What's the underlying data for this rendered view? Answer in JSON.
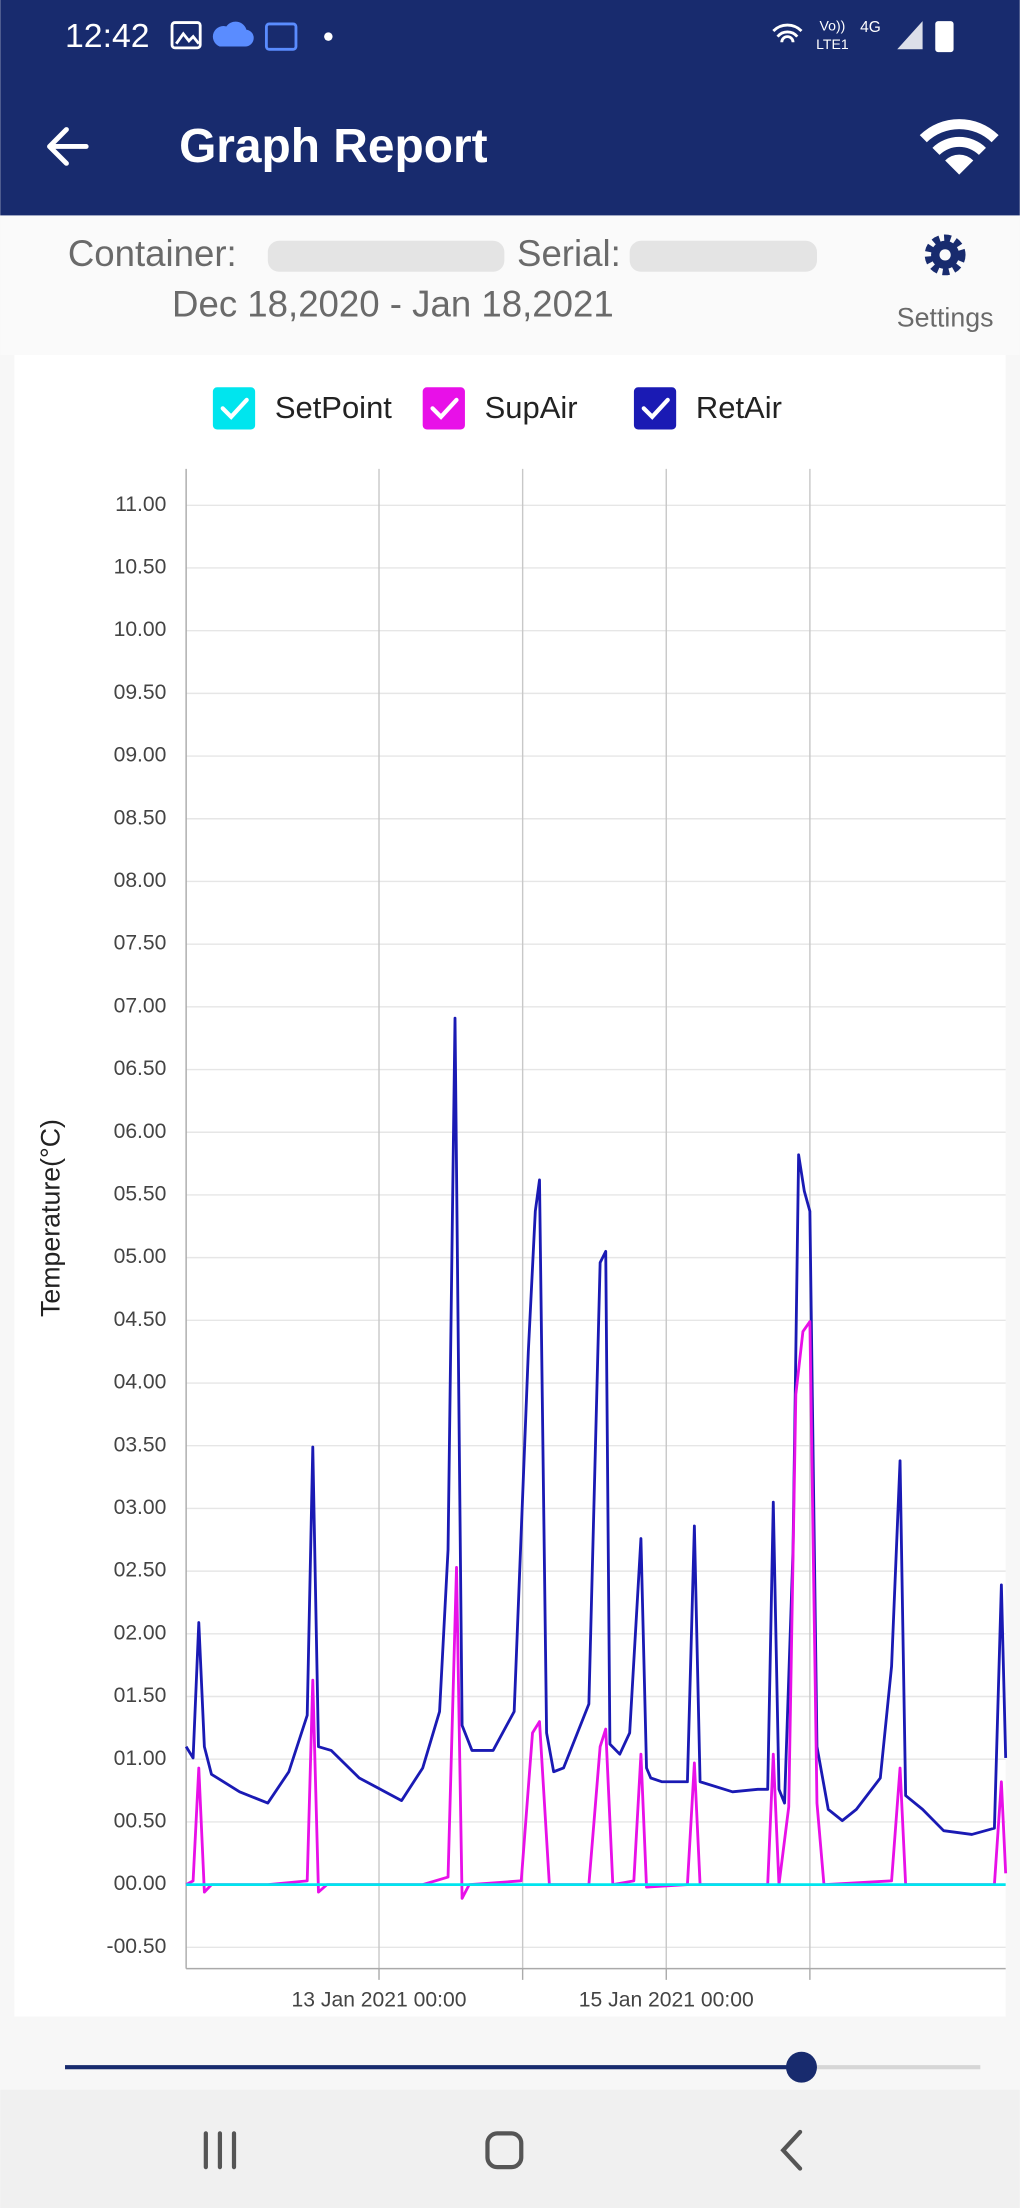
{
  "status_bar": {
    "time": "12:42",
    "volte": "Vo))",
    "lte": "LTE1",
    "network": "4G"
  },
  "header": {
    "title": "Graph Report"
  },
  "info": {
    "container_label": "Container:",
    "serial_label": "Serial:",
    "date_range": "Dec 18,2020 - Jan 18,2021",
    "settings": "Settings"
  },
  "chart_data": {
    "type": "line",
    "y_label": "Temperature(°C)",
    "xlim": [
      "2021-01-11 15:46",
      "2021-01-17 08:43"
    ],
    "ylim": [
      -0.67,
      11.29
    ],
    "grid": true,
    "xticks": [
      {
        "value": "2021-01-13 00:00",
        "label": "13 Jan 2021 00:00"
      },
      {
        "value": "2021-01-14 00:00",
        "label": null
      },
      {
        "value": "2021-01-15 00:00",
        "label": "15 Jan 2021 00:00"
      },
      {
        "value": "2021-01-16 00:00",
        "label": null
      }
    ],
    "yticks": [
      {
        "value": 11,
        "label": "11.00"
      },
      {
        "value": 10.5,
        "label": "10.50"
      },
      {
        "value": 10,
        "label": "10.00"
      },
      {
        "value": 9.5,
        "label": "09.50"
      },
      {
        "value": 9,
        "label": "09.00"
      },
      {
        "value": 8.5,
        "label": "08.50"
      },
      {
        "value": 8,
        "label": "08.00"
      },
      {
        "value": 7.5,
        "label": "07.50"
      },
      {
        "value": 7,
        "label": "07.00"
      },
      {
        "value": 6.5,
        "label": "06.50"
      },
      {
        "value": 6,
        "label": "06.00"
      },
      {
        "value": 5.5,
        "label": "05.50"
      },
      {
        "value": 5,
        "label": "05.00"
      },
      {
        "value": 4.5,
        "label": "04.50"
      },
      {
        "value": 4,
        "label": "04.00"
      },
      {
        "value": 3.5,
        "label": "03.50"
      },
      {
        "value": 3,
        "label": "03.00"
      },
      {
        "value": 2.5,
        "label": "02.50"
      },
      {
        "value": 2,
        "label": "02.00"
      },
      {
        "value": 1.5,
        "label": "01.50"
      },
      {
        "value": 1,
        "label": "01.00"
      },
      {
        "value": 0.5,
        "label": "00.50"
      },
      {
        "value": 0,
        "label": "00.00"
      },
      {
        "value": -0.5,
        "label": "-00.50"
      }
    ],
    "series": [
      {
        "name": "SetPoint",
        "color": "#00e5ee",
        "x": [
          "2021-01-11 15:46",
          "2021-01-17 08:43"
        ],
        "values": [
          0,
          0
        ]
      },
      {
        "name": "SupAir",
        "color": "#e810e8",
        "x": [
          "2021-01-11 15:46",
          "2021-01-11 16:56",
          "2021-01-11 17:53",
          "2021-01-11 18:49",
          "2021-01-11 20:00",
          "2021-01-12 05:25",
          "2021-01-12 12:00",
          "2021-01-12 12:56",
          "2021-01-12 13:53",
          "2021-01-12 15:18",
          "2021-01-13 07:18",
          "2021-01-13 11:32",
          "2021-01-13 12:57",
          "2021-01-13 13:53",
          "2021-01-13 15:04",
          "2021-01-13 23:46",
          "2021-01-14 01:39",
          "2021-01-14 02:49",
          "2021-01-14 04:28",
          "2021-01-14 11:04",
          "2021-01-14 12:57",
          "2021-01-14 13:53",
          "2021-01-14 15:04",
          "2021-01-14 18:35",
          "2021-01-14 19:46",
          "2021-01-14 20:42",
          "2021-01-15 03:32",
          "2021-01-15 04:42",
          "2021-01-15 05:39",
          "2021-01-15 16:57",
          "2021-01-15 17:53",
          "2021-01-15 18:50",
          "2021-01-15 20:28",
          "2021-01-15 21:39",
          "2021-01-15 22:50",
          "2021-01-16 00:00",
          "2021-01-16 01:11",
          "2021-01-16 02:21",
          "2021-01-16 13:39",
          "2021-01-16 15:04",
          "2021-01-16 16:00",
          "2021-01-17 06:50",
          "2021-01-17 08:00",
          "2021-01-17 08:43"
        ],
        "values": [
          0,
          0.03,
          0.93,
          -0.06,
          0,
          0,
          0.03,
          1.63,
          -0.06,
          0,
          0,
          0.06,
          2.53,
          -0.11,
          0,
          0.03,
          1.21,
          1.3,
          0,
          0,
          1.1,
          1.24,
          0,
          0.03,
          1.04,
          -0.02,
          0,
          0.97,
          0,
          0,
          1.04,
          0,
          0.62,
          3.91,
          4.41,
          4.49,
          0.65,
          0,
          0.03,
          0.93,
          0,
          0,
          0.82,
          0.09
        ]
      },
      {
        "name": "RetAir",
        "color": "#1a1ab4",
        "x": [
          "2021-01-11 15:46",
          "2021-01-11 16:56",
          "2021-01-11 17:53",
          "2021-01-11 18:49",
          "2021-01-11 20:00",
          "2021-01-12 00:42",
          "2021-01-12 05:25",
          "2021-01-12 08:56",
          "2021-01-12 12:00",
          "2021-01-12 12:56",
          "2021-01-12 13:53",
          "2021-01-12 16:00",
          "2021-01-12 20:42",
          "2021-01-13 03:46",
          "2021-01-13 07:18",
          "2021-01-13 10:07",
          "2021-01-13 11:32",
          "2021-01-13 12:42",
          "2021-01-13 13:53",
          "2021-01-13 15:32",
          "2021-01-13 19:04",
          "2021-01-13 22:35",
          "2021-01-14 00:57",
          "2021-01-14 02:07",
          "2021-01-14 02:49",
          "2021-01-14 04:00",
          "2021-01-14 05:11",
          "2021-01-14 06:50",
          "2021-01-14 11:04",
          "2021-01-14 12:57",
          "2021-01-14 13:53",
          "2021-01-14 14:35",
          "2021-01-14 16:14",
          "2021-01-14 17:53",
          "2021-01-14 19:46",
          "2021-01-14 20:42",
          "2021-01-14 21:25",
          "2021-01-14 23:18",
          "2021-01-15 03:32",
          "2021-01-15 04:42",
          "2021-01-15 05:39",
          "2021-01-15 11:04",
          "2021-01-15 15:18",
          "2021-01-15 16:57",
          "2021-01-15 17:53",
          "2021-01-15 18:50",
          "2021-01-15 19:46",
          "2021-01-15 21:11",
          "2021-01-15 22:07",
          "2021-01-15 23:04",
          "2021-01-16 00:00",
          "2021-01-16 01:11",
          "2021-01-16 03:04",
          "2021-01-16 05:25",
          "2021-01-16 07:46",
          "2021-01-16 11:46",
          "2021-01-16 13:39",
          "2021-01-16 15:04",
          "2021-01-16 16:00",
          "2021-01-16 18:50",
          "2021-01-16 22:21",
          "2021-01-17 03:04",
          "2021-01-17 06:50",
          "2021-01-17 08:00",
          "2021-01-17 08:43"
        ],
        "values": [
          1.1,
          1.01,
          2.09,
          1.1,
          0.88,
          0.74,
          0.65,
          0.9,
          1.35,
          3.49,
          1.1,
          1.07,
          0.85,
          0.67,
          0.93,
          1.38,
          2.67,
          6.91,
          1.27,
          1.07,
          1.07,
          1.38,
          4.25,
          5.37,
          5.62,
          1.21,
          0.9,
          0.93,
          1.44,
          4.96,
          5.05,
          1.12,
          1.04,
          1.21,
          2.76,
          0.93,
          0.85,
          0.82,
          0.82,
          2.86,
          0.82,
          0.74,
          0.76,
          0.76,
          3.05,
          0.76,
          0.65,
          2.67,
          5.82,
          5.53,
          5.37,
          1.1,
          0.6,
          0.51,
          0.6,
          0.85,
          1.74,
          3.38,
          0.71,
          0.6,
          0.43,
          0.4,
          0.45,
          2.39,
          1.01
        ]
      }
    ]
  }
}
